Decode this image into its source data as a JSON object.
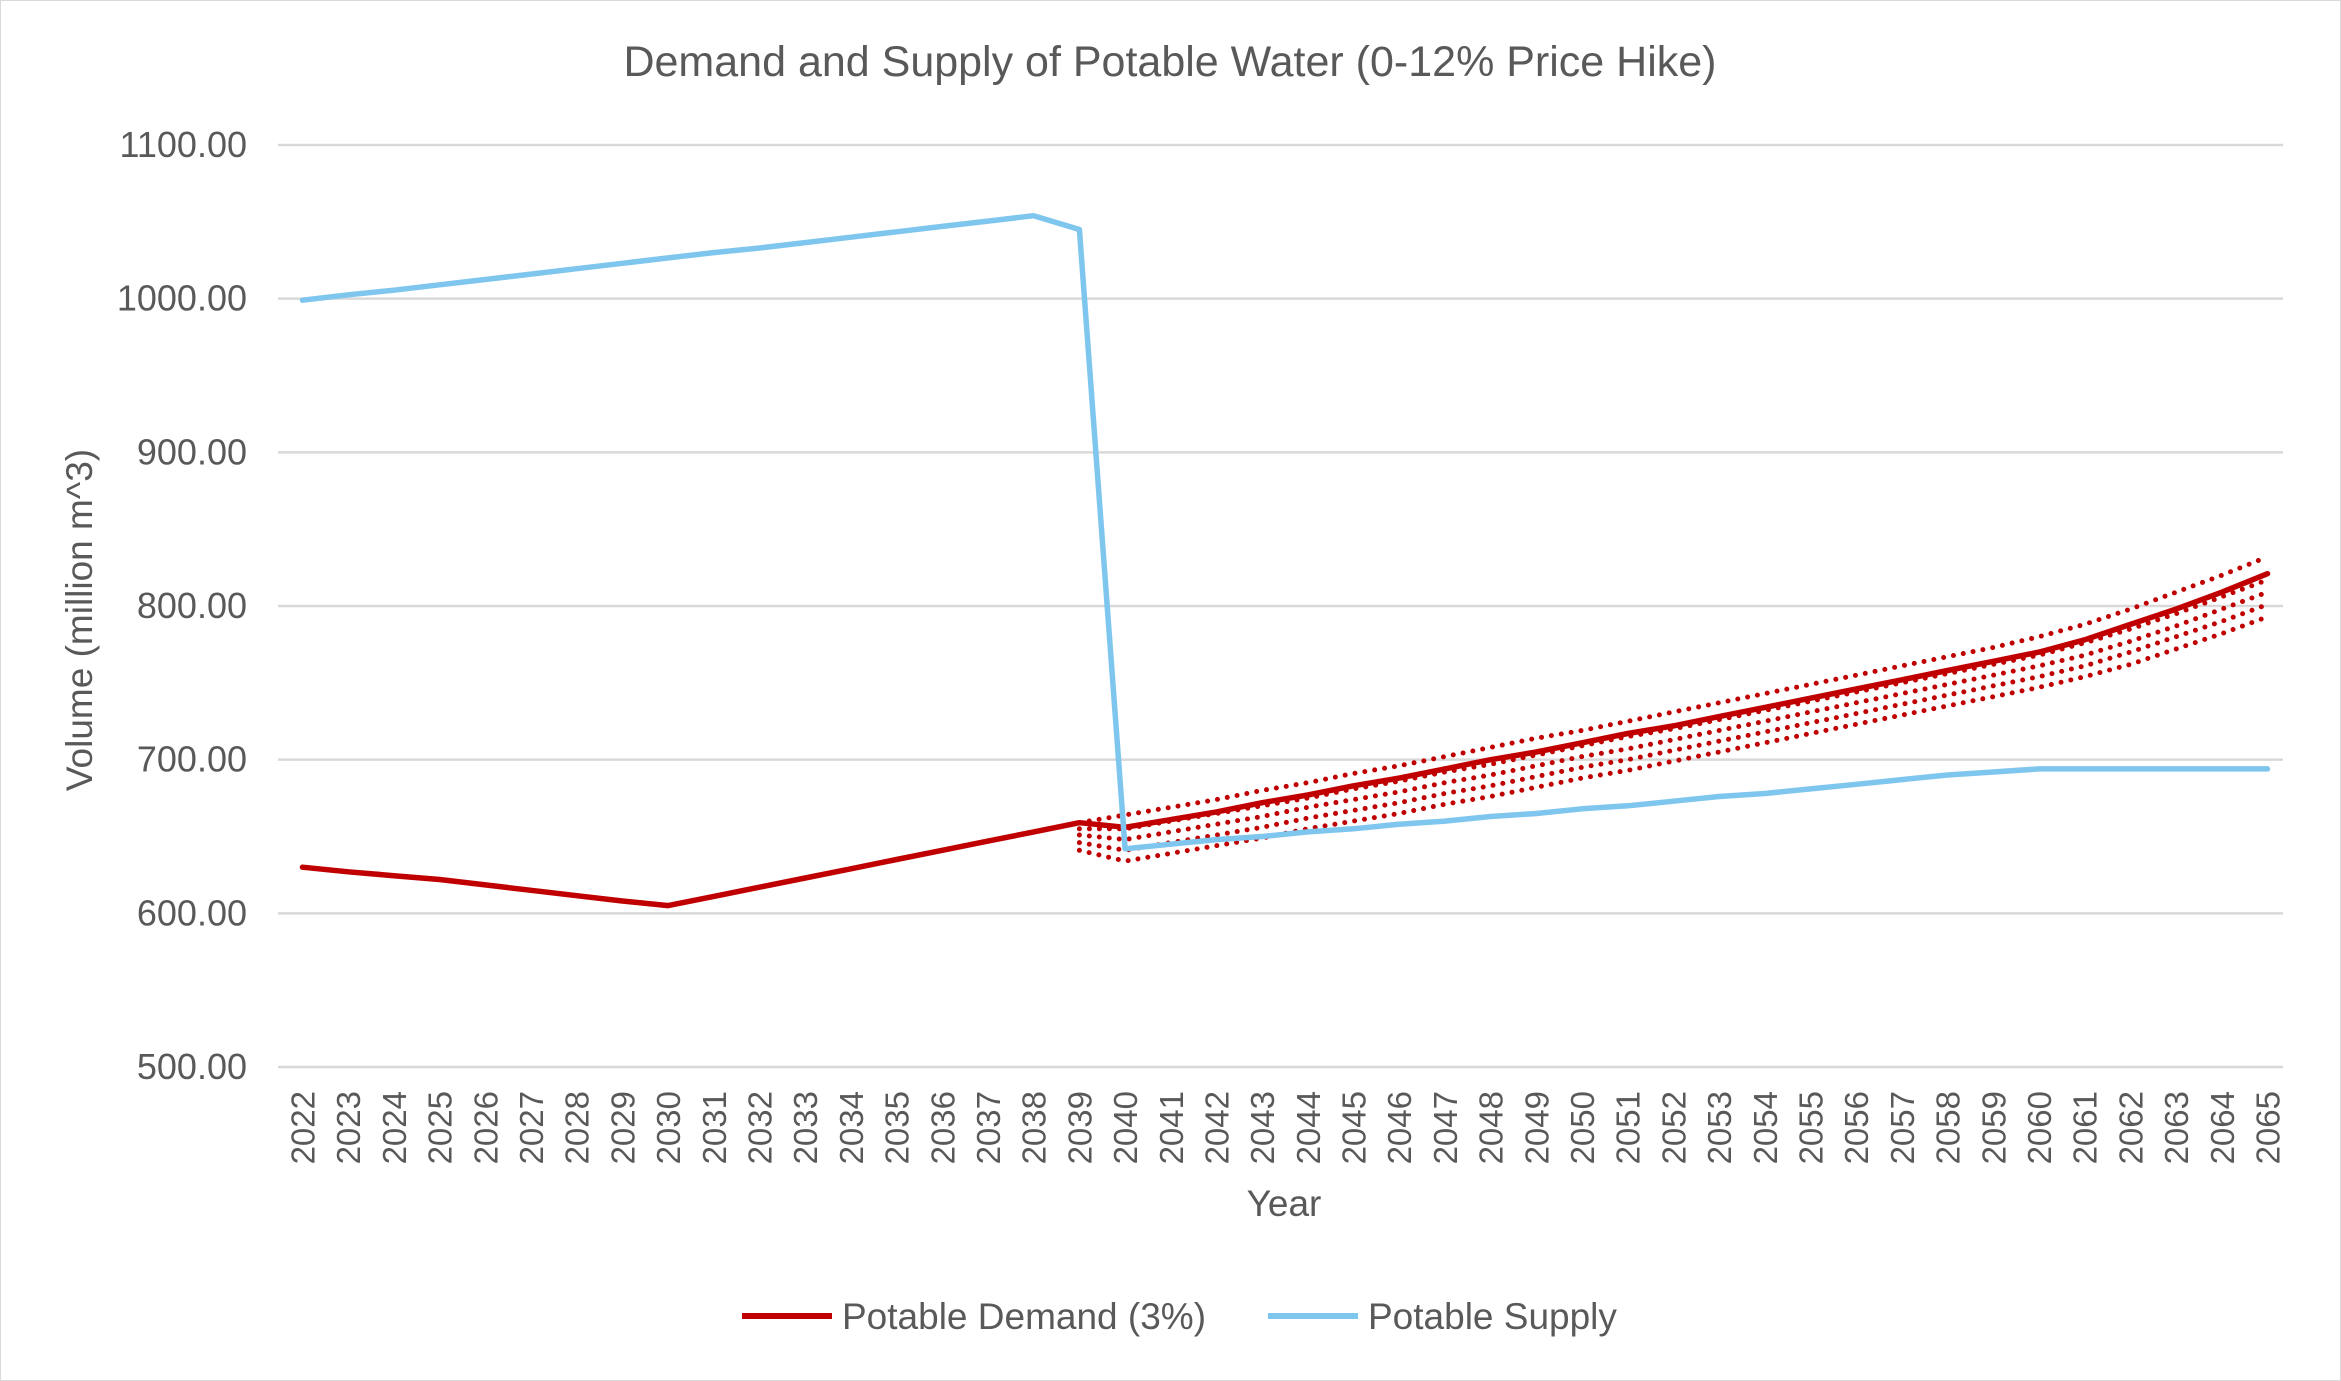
{
  "chart_data": {
    "type": "line",
    "title": "Demand and Supply of Potable Water (0-12% Price Hike)",
    "xlabel": "Year",
    "ylabel": "Volume (million m^3)",
    "ylim": [
      500,
      1100
    ],
    "yticks": [
      "500.00",
      "600.00",
      "700.00",
      "800.00",
      "900.00",
      "1000.00",
      "1100.00"
    ],
    "grid": true,
    "legend_position": "bottom",
    "x": [
      2022,
      2023,
      2024,
      2025,
      2026,
      2027,
      2028,
      2029,
      2030,
      2031,
      2032,
      2033,
      2034,
      2035,
      2036,
      2037,
      2038,
      2039,
      2040,
      2041,
      2042,
      2043,
      2044,
      2045,
      2046,
      2047,
      2048,
      2049,
      2050,
      2051,
      2052,
      2053,
      2054,
      2055,
      2056,
      2057,
      2058,
      2059,
      2060,
      2061,
      2062,
      2063,
      2064,
      2065
    ],
    "series": [
      {
        "name": "Potable Demand (3%)",
        "color": "#c00000",
        "style": "solid",
        "values": [
          630,
          627,
          624.5,
          622,
          618.5,
          615,
          611.5,
          608,
          605,
          611,
          617,
          623,
          629,
          635,
          641,
          647,
          653,
          659,
          656,
          661,
          666,
          672,
          677,
          683,
          688,
          694,
          700,
          705,
          711,
          717,
          722,
          728,
          734,
          740,
          746,
          752,
          758,
          764,
          770,
          778,
          788,
          798,
          809,
          821
        ]
      },
      {
        "name": "Potable Supply",
        "color": "#7fc6ef",
        "style": "solid",
        "values": [
          999,
          1002.5,
          1005.5,
          1009,
          1012.5,
          1016,
          1019.5,
          1023,
          1026.5,
          1030,
          1033,
          1036.5,
          1040,
          1043.5,
          1047,
          1050.5,
          1054,
          1045,
          642,
          645,
          648,
          650,
          653,
          655,
          658,
          660,
          663,
          665,
          668,
          670,
          673,
          676,
          678,
          681,
          684,
          687,
          690,
          692,
          694,
          694,
          694,
          694,
          694,
          694
        ]
      }
    ],
    "scenario_lines": {
      "color": "#c00000",
      "style": "dotted",
      "x": [
        2039,
        2040,
        2041,
        2042,
        2043,
        2044,
        2045,
        2046,
        2047,
        2048,
        2049,
        2050,
        2051,
        2052,
        2053,
        2054,
        2055,
        2056,
        2057,
        2058,
        2059,
        2060,
        2061,
        2062,
        2063,
        2064,
        2065
      ],
      "lines": [
        [
          659,
          664,
          669,
          674,
          680,
          685,
          691,
          696,
          702,
          708,
          714,
          719,
          725,
          731,
          737,
          743,
          749,
          755,
          761,
          767,
          773,
          780,
          788,
          798,
          809,
          820,
          832
        ],
        [
          655,
          655,
          660,
          665,
          670,
          675,
          681,
          686,
          692,
          697,
          703,
          709,
          715,
          720,
          726,
          732,
          738,
          744,
          750,
          756,
          762,
          768,
          776,
          785,
          795,
          806,
          817
        ],
        [
          651,
          648,
          653,
          658,
          663,
          669,
          674,
          679,
          685,
          690,
          696,
          702,
          707,
          713,
          719,
          725,
          731,
          737,
          743,
          749,
          755,
          761,
          768,
          777,
          787,
          798,
          809
        ],
        [
          646,
          641,
          646,
          651,
          656,
          662,
          667,
          672,
          678,
          683,
          689,
          695,
          700,
          706,
          712,
          718,
          724,
          730,
          736,
          742,
          748,
          754,
          761,
          770,
          780,
          790,
          801
        ],
        [
          641,
          634,
          639,
          644,
          649,
          655,
          660,
          665,
          671,
          676,
          682,
          688,
          693,
          699,
          705,
          711,
          717,
          723,
          729,
          735,
          741,
          747,
          754,
          762,
          772,
          782,
          793
        ]
      ]
    }
  }
}
